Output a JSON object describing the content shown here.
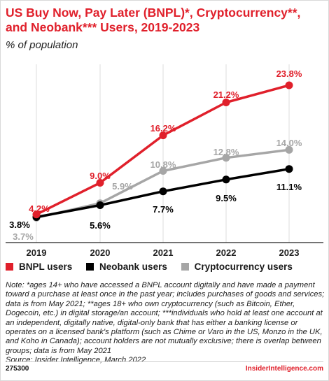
{
  "header": {
    "title": "US Buy Now, Pay Later (BNPL)*, Cryptocurrency**, and Neobank*** Users, 2019-2023",
    "subtitle": "% of population"
  },
  "chart_data": {
    "type": "line",
    "categories": [
      "2019",
      "2020",
      "2021",
      "2022",
      "2023"
    ],
    "series": [
      {
        "name": "BNPL users",
        "color": "#e0202b",
        "values": [
          4.2,
          9.0,
          16.2,
          21.2,
          23.8
        ],
        "labels": [
          "4.2%",
          "9.0%",
          "16.2%",
          "21.2%",
          "23.8%"
        ]
      },
      {
        "name": "Neobank users",
        "color": "#000000",
        "values": [
          3.8,
          5.6,
          7.7,
          9.5,
          11.1
        ],
        "labels": [
          "3.8%",
          "5.6%",
          "7.7%",
          "9.5%",
          "11.1%"
        ]
      },
      {
        "name": "Cryptocurrency users",
        "color": "#a6a6a6",
        "values": [
          3.7,
          5.9,
          10.8,
          12.8,
          14.0
        ],
        "labels": [
          "3.7%",
          "5.9%",
          "10.8%",
          "12.8%",
          "14.0%"
        ]
      }
    ],
    "grid": "vertical",
    "legend": "bottom"
  },
  "legend": {
    "items": [
      {
        "label": "BNPL users",
        "color": "#e0202b"
      },
      {
        "label": "Neobank users",
        "color": "#000000"
      },
      {
        "label": "Cryptocurrency users",
        "color": "#a6a6a6"
      }
    ]
  },
  "note": {
    "text": "Note: *ages 14+ who have accessed a BNPL account digitally and have made a payment toward a purchase at least once in the past year; includes purchases of goods and services; data is from May 2021; **ages 18+ who own cryptocurrency (such as Bitcoin, Ether, Dogecoin, etc.) in digital storage/an account; ***individuals who hold at least one account at an independent, digitally native, digital-only bank that has either a banking license or operates on a licensed bank's platform (such as Chime or Varo in the US, Monzo in the UK, and Koho in Canada); account holders are not mutually exclusive; there is overlap between groups; data is from May 2021",
    "source": "Source: Insider Intelligence, March 2022"
  },
  "footer": {
    "id": "275300",
    "brand": "InsiderIntelligence.com"
  }
}
